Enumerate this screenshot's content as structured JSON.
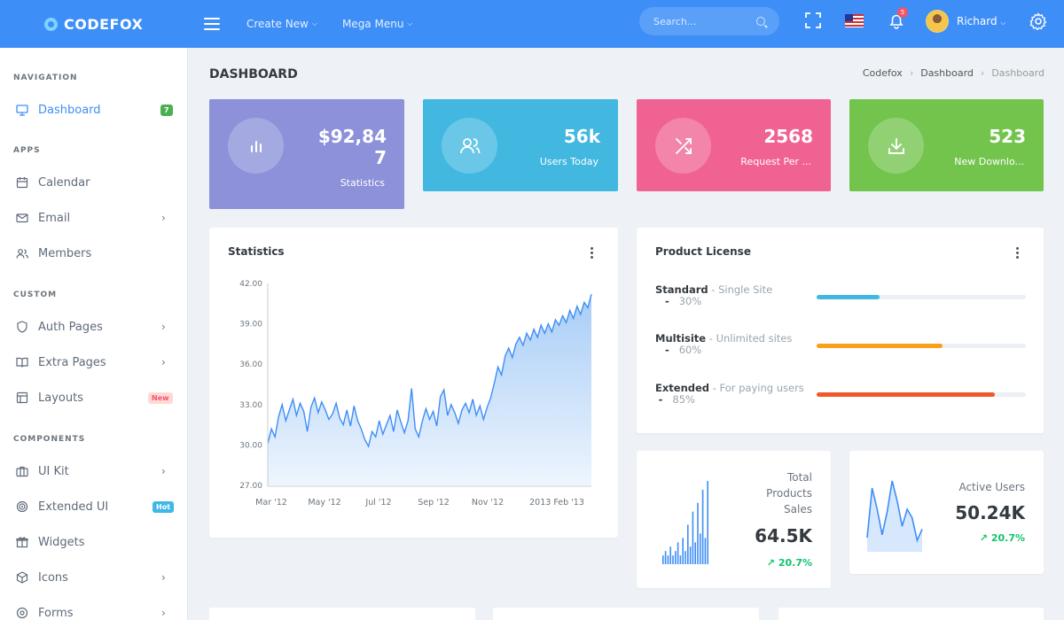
{
  "brand": {
    "name": "CODEFOX"
  },
  "topbar": {
    "menu1": "Create New",
    "menu2": "Mega Menu",
    "search_placeholder": "Search...",
    "notification_count": "5",
    "user_name": "Richard"
  },
  "sidebar": {
    "sections": {
      "navigation": "NAVIGATION",
      "apps": "APPS",
      "custom": "CUSTOM",
      "components": "COMPONENTS"
    },
    "items": {
      "dashboard": {
        "label": "Dashboard",
        "badge": "7"
      },
      "calendar": {
        "label": "Calendar"
      },
      "email": {
        "label": "Email"
      },
      "members": {
        "label": "Members"
      },
      "auth": {
        "label": "Auth Pages"
      },
      "extra": {
        "label": "Extra Pages"
      },
      "layouts": {
        "label": "Layouts",
        "badge": "New"
      },
      "uikit": {
        "label": "UI Kit"
      },
      "extended": {
        "label": "Extended UI",
        "badge": "Hot"
      },
      "widgets": {
        "label": "Widgets"
      },
      "icons": {
        "label": "Icons"
      },
      "forms": {
        "label": "Forms"
      }
    }
  },
  "page": {
    "title": "DASHBOARD",
    "breadcrumb": [
      "Codefox",
      "Dashboard",
      "Dashboard"
    ]
  },
  "stats": [
    {
      "value_line1": "$92,84",
      "value_line2": "7",
      "label": "Statistics",
      "color": "#8c91d9"
    },
    {
      "value": "56k",
      "label": "Users Today",
      "color": "#42b8e0"
    },
    {
      "value": "2568",
      "label": "Request Per ...",
      "color": "#f06292"
    },
    {
      "value": "523",
      "label": "New Downlo...",
      "color": "#72c44d"
    }
  ],
  "statistics_card": {
    "title": "Statistics"
  },
  "chart_data": {
    "type": "area",
    "title": "Statistics",
    "yticks": [
      "42.00",
      "39.00",
      "36.00",
      "33.00",
      "30.00",
      "27.00"
    ],
    "ylim": [
      27,
      42
    ],
    "xticks": [
      "Mar '12",
      "May '12",
      "Jul '12",
      "Sep '12",
      "Nov '12",
      "2013 Feb '13"
    ],
    "grid": false,
    "color": "#3e8ef7",
    "values": [
      30.1,
      31.2,
      30.6,
      32.1,
      33.0,
      31.8,
      32.6,
      33.4,
      32.2,
      33.1,
      32.5,
      31.0,
      32.8,
      33.5,
      32.4,
      33.2,
      32.6,
      31.9,
      32.3,
      33.1,
      32.0,
      31.5,
      32.6,
      31.4,
      32.9,
      31.8,
      31.2,
      30.4,
      29.9,
      31.0,
      30.6,
      31.8,
      30.8,
      31.5,
      32.2,
      31.0,
      32.6,
      31.7,
      30.9,
      31.8,
      34.2,
      31.2,
      30.6,
      31.8,
      32.7,
      31.9,
      32.5,
      31.4,
      33.6,
      34.1,
      32.2,
      33.0,
      32.4,
      31.6,
      32.6,
      33.1,
      32.4,
      33.4,
      32.2,
      32.9,
      31.9,
      32.8,
      33.5,
      34.6,
      35.8,
      35.2,
      36.6,
      37.2,
      36.5,
      37.5,
      38.0,
      37.4,
      38.3,
      37.8,
      38.6,
      38.0,
      38.9,
      38.3,
      39.0,
      38.4,
      39.3,
      38.9,
      39.6,
      39.1,
      40.0,
      39.4,
      40.3,
      39.7,
      40.6,
      40.2,
      41.2
    ]
  },
  "license_card": {
    "title": "Product License",
    "rows": [
      {
        "name": "Standard",
        "desc": "Single Site",
        "pct_text": "30%",
        "value": 0.3,
        "color": "#42b8e0"
      },
      {
        "name": "Multisite",
        "desc": "Unlimited sites",
        "pct_text": "60%",
        "value": 0.6,
        "color": "#f9a01b"
      },
      {
        "name": "Extended",
        "desc": "For paying users",
        "pct_text": "85%",
        "value": 0.85,
        "color": "#f05a28"
      }
    ]
  },
  "products_card": {
    "label_line1": "Total",
    "label_line2": "Products",
    "label_line3": "Sales",
    "value": "64.5K",
    "pct": "20.7%",
    "bars": [
      2,
      3,
      2,
      4,
      2,
      3,
      5,
      2,
      6,
      3,
      9,
      4,
      12,
      5,
      14,
      7,
      17,
      6,
      19
    ]
  },
  "active_users_card": {
    "label": "Active Users",
    "value": "50.24K",
    "pct": "20.7%",
    "series": [
      10,
      45,
      30,
      12,
      28,
      50,
      36,
      18,
      30,
      24,
      8,
      16
    ]
  }
}
